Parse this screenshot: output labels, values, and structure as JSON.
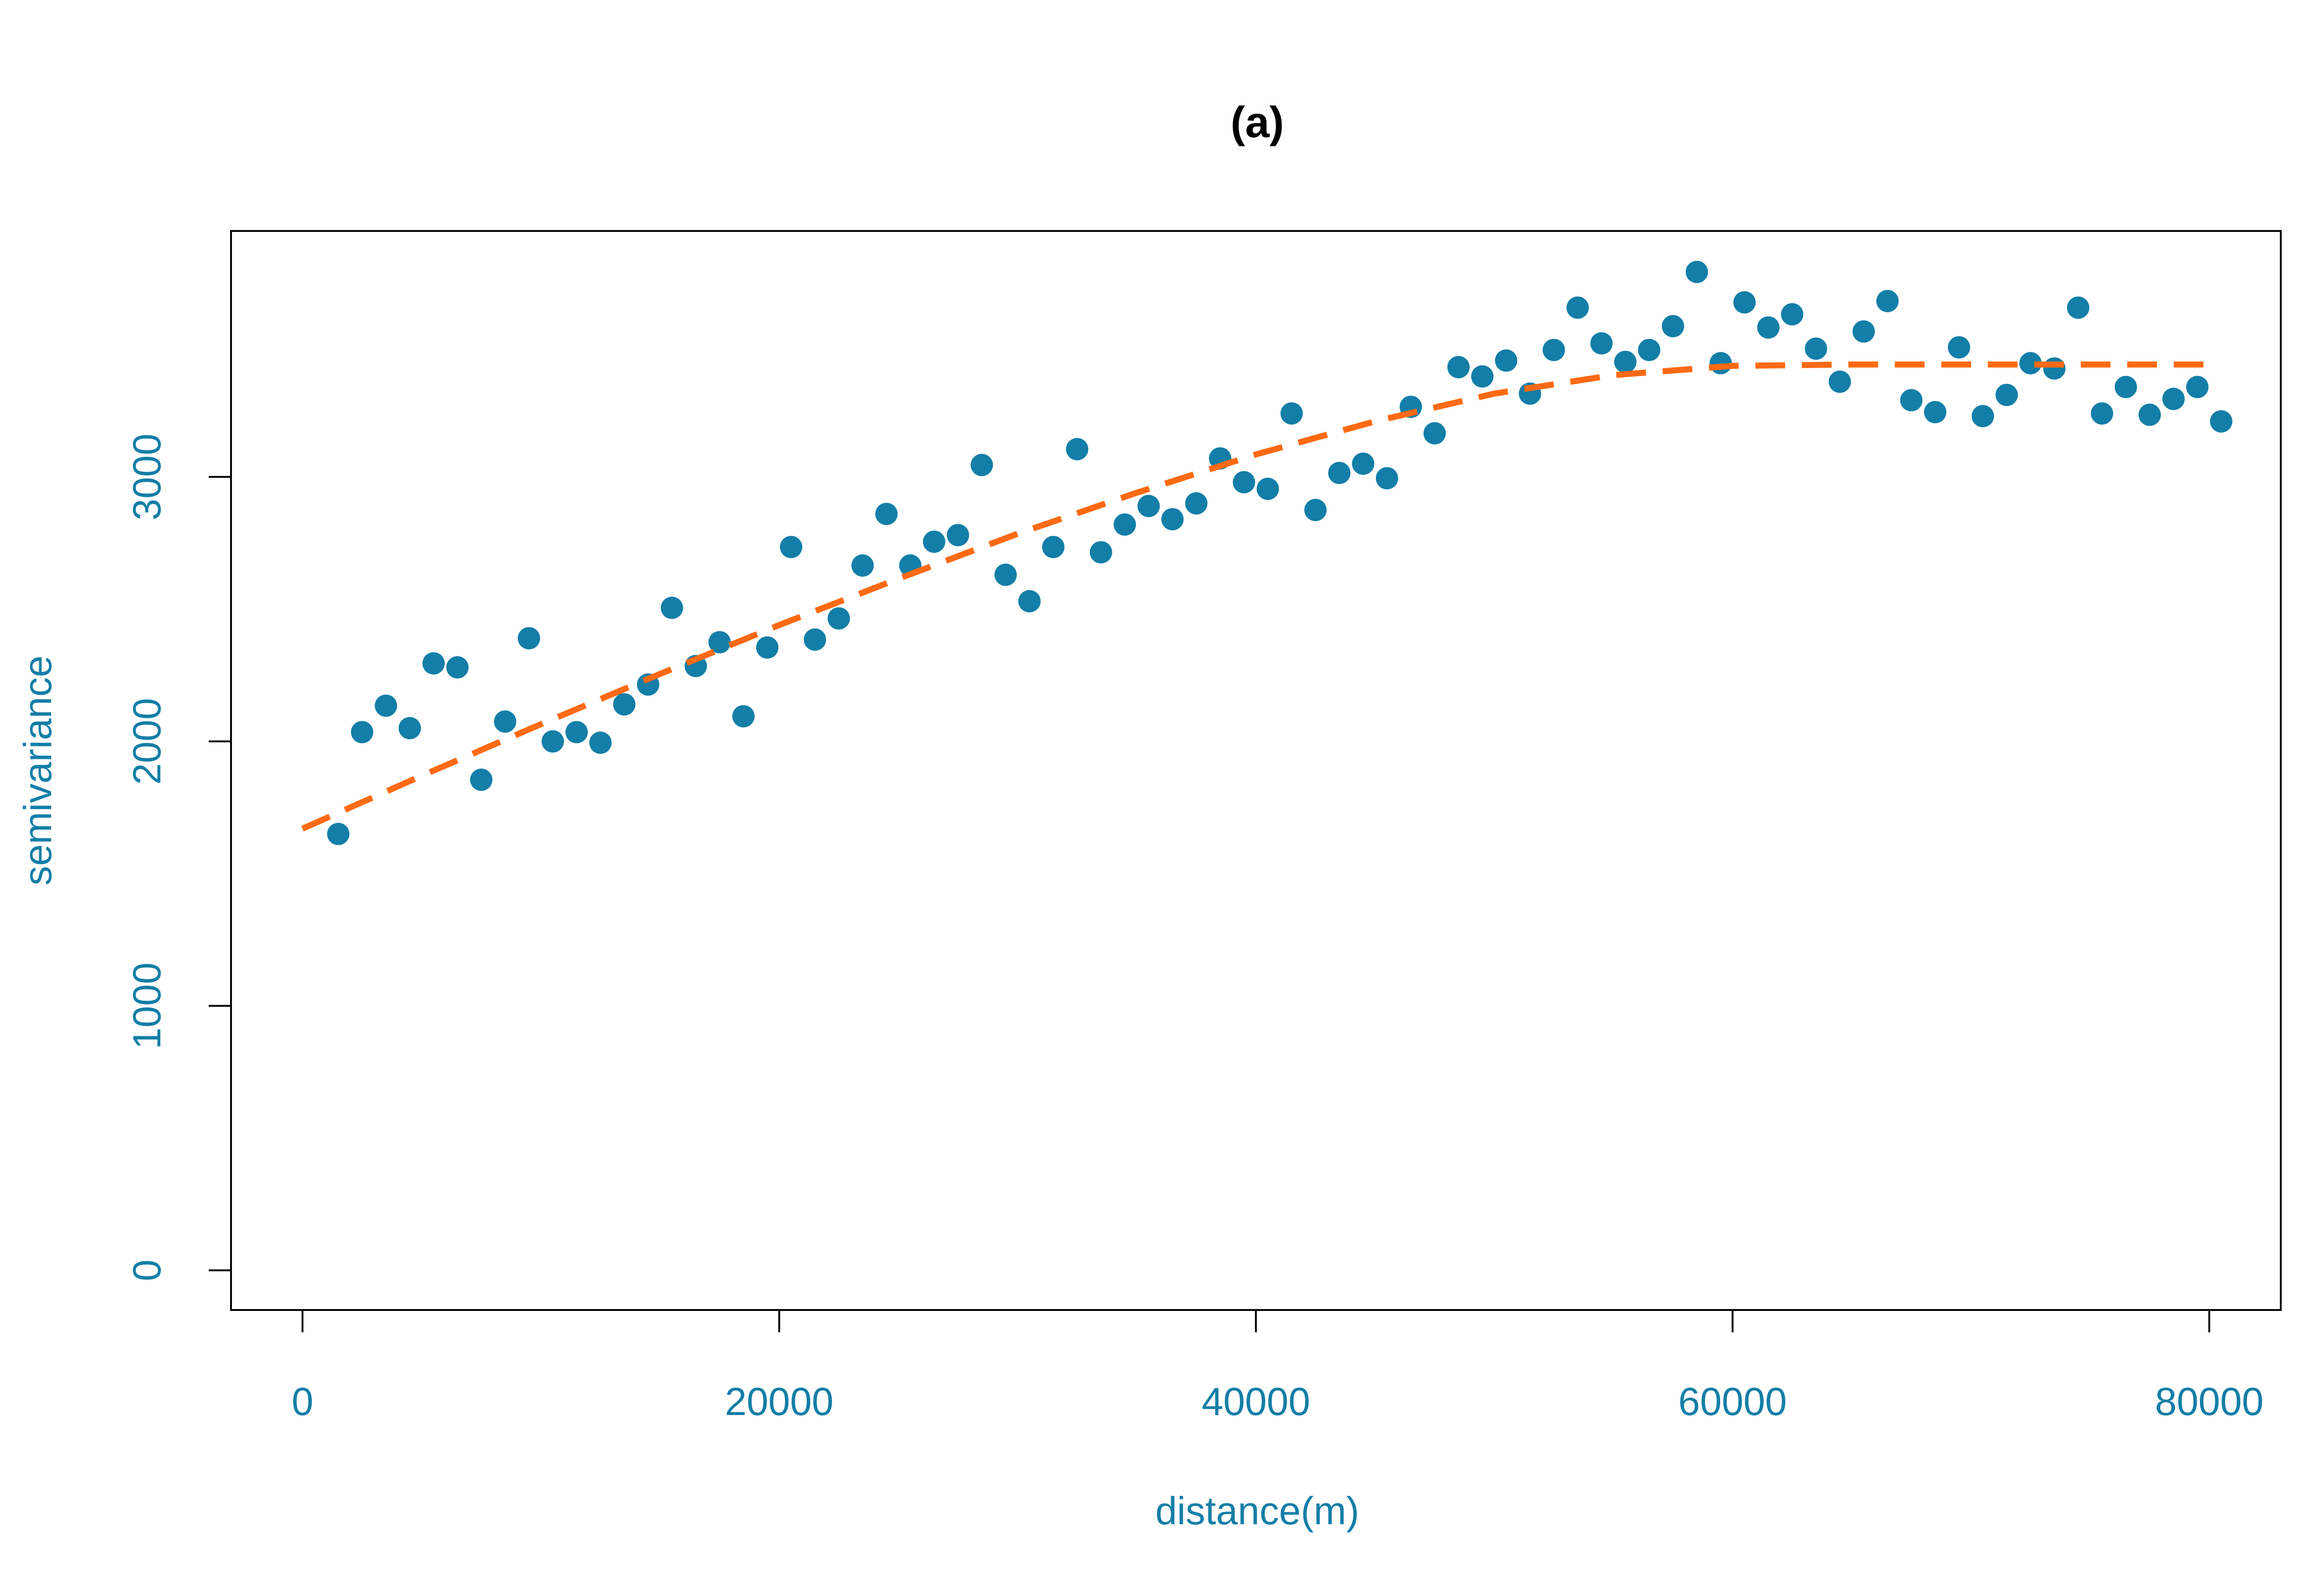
{
  "chart_data": {
    "type": "scatter",
    "title": "(a)",
    "xlabel": "distance(m)",
    "ylabel": "semivariance",
    "xlim": [
      -3000,
      83000
    ],
    "ylim": [
      -150,
      3930
    ],
    "xticks": [
      0,
      20000,
      40000,
      60000,
      80000
    ],
    "yticks": [
      0,
      1000,
      2000,
      3000
    ],
    "xtick_labels": [
      "0",
      "20000",
      "40000",
      "60000",
      "80000"
    ],
    "ytick_labels": [
      "0",
      "1000",
      "2000",
      "3000"
    ],
    "grid": false,
    "points": [
      [
        1500,
        1650
      ],
      [
        2500,
        2035
      ],
      [
        3500,
        2135
      ],
      [
        4500,
        2050
      ],
      [
        5500,
        2295
      ],
      [
        6500,
        2280
      ],
      [
        7500,
        1855
      ],
      [
        8500,
        2075
      ],
      [
        9500,
        2390
      ],
      [
        10500,
        2000
      ],
      [
        11500,
        2035
      ],
      [
        12500,
        1995
      ],
      [
        13500,
        2140
      ],
      [
        14500,
        2215
      ],
      [
        15500,
        2505
      ],
      [
        16500,
        2285
      ],
      [
        17500,
        2375
      ],
      [
        18500,
        2095
      ],
      [
        19500,
        2355
      ],
      [
        20500,
        2735
      ],
      [
        21500,
        2385
      ],
      [
        22500,
        2465
      ],
      [
        23500,
        2665
      ],
      [
        24500,
        2860
      ],
      [
        25500,
        2665
      ],
      [
        26500,
        2755
      ],
      [
        27500,
        2780
      ],
      [
        28500,
        3045
      ],
      [
        29500,
        2630
      ],
      [
        30500,
        2530
      ],
      [
        31500,
        2735
      ],
      [
        32500,
        3105
      ],
      [
        33500,
        2715
      ],
      [
        34500,
        2820
      ],
      [
        35500,
        2890
      ],
      [
        36500,
        2840
      ],
      [
        37500,
        2900
      ],
      [
        38500,
        3070
      ],
      [
        39500,
        2980
      ],
      [
        40500,
        2955
      ],
      [
        41500,
        3240
      ],
      [
        42500,
        2875
      ],
      [
        43500,
        3015
      ],
      [
        44500,
        3050
      ],
      [
        45500,
        2995
      ],
      [
        46500,
        3265
      ],
      [
        47500,
        3165
      ],
      [
        48500,
        3415
      ],
      [
        49500,
        3380
      ],
      [
        50500,
        3440
      ],
      [
        51500,
        3315
      ],
      [
        52500,
        3480
      ],
      [
        53500,
        3640
      ],
      [
        54500,
        3505
      ],
      [
        55500,
        3435
      ],
      [
        56500,
        3480
      ],
      [
        57500,
        3570
      ],
      [
        58500,
        3775
      ],
      [
        59500,
        3430
      ],
      [
        60500,
        3660
      ],
      [
        61500,
        3565
      ],
      [
        62500,
        3615
      ],
      [
        63500,
        3485
      ],
      [
        64500,
        3360
      ],
      [
        65500,
        3550
      ],
      [
        66500,
        3665
      ],
      [
        67500,
        3290
      ],
      [
        68500,
        3245
      ],
      [
        69500,
        3490
      ],
      [
        70500,
        3230
      ],
      [
        71500,
        3310
      ],
      [
        72500,
        3430
      ],
      [
        73500,
        3410
      ],
      [
        74500,
        3640
      ],
      [
        75500,
        3240
      ],
      [
        76500,
        3340
      ],
      [
        77500,
        3235
      ],
      [
        78500,
        3295
      ],
      [
        79500,
        3340
      ],
      [
        80500,
        3210
      ]
    ],
    "fitted_curve": [
      [
        0,
        1670
      ],
      [
        5000,
        1870
      ],
      [
        10000,
        2065
      ],
      [
        15000,
        2255
      ],
      [
        20000,
        2440
      ],
      [
        25000,
        2615
      ],
      [
        30000,
        2785
      ],
      [
        35000,
        2940
      ],
      [
        40000,
        3085
      ],
      [
        45000,
        3210
      ],
      [
        50000,
        3315
      ],
      [
        55000,
        3385
      ],
      [
        60000,
        3420
      ],
      [
        65000,
        3425
      ],
      [
        70000,
        3425
      ],
      [
        75000,
        3425
      ],
      [
        80000,
        3425
      ]
    ],
    "colors": {
      "points": "#137ea7",
      "fitted_curve": "#ff6a13",
      "axis_text": "#137ea7",
      "frame": "#000000",
      "title": "#000000"
    }
  }
}
